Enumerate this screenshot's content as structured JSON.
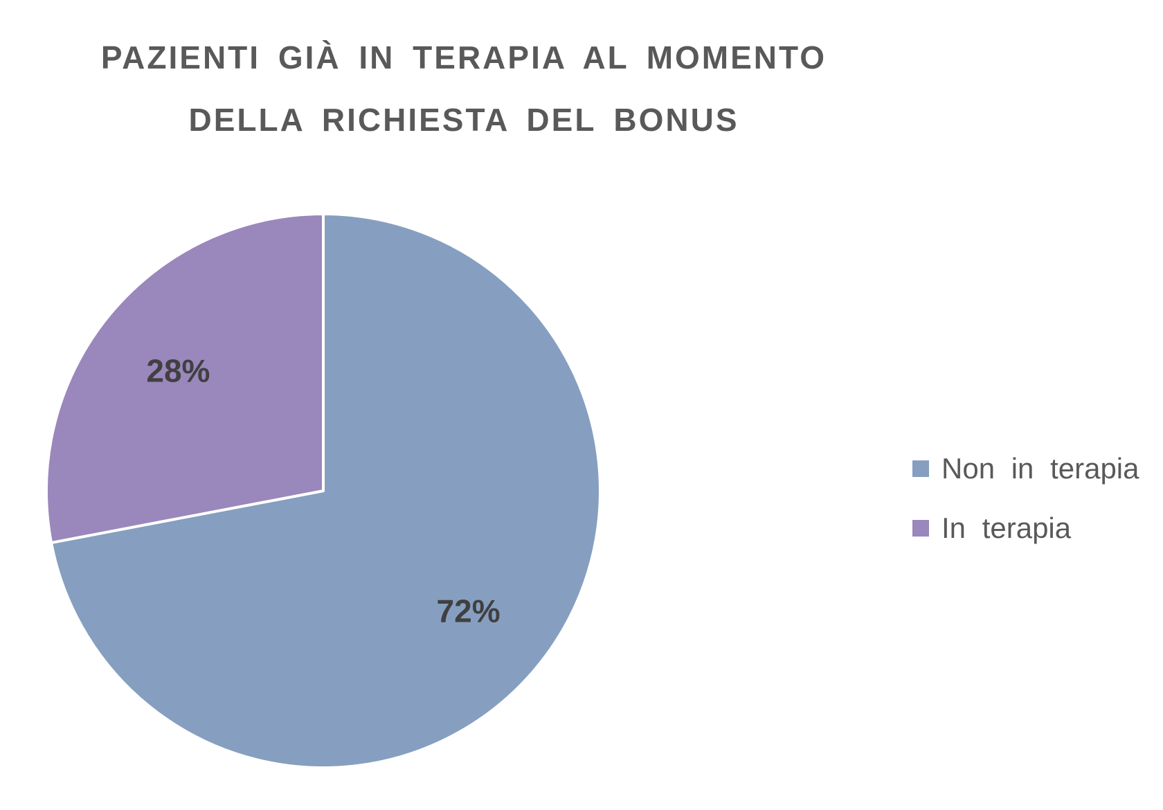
{
  "chart_data": {
    "type": "pie",
    "title": [
      "PAZIENTI GIÀ IN TERAPIA AL MOMENTO",
      "DELLA RICHIESTA DEL BONUS"
    ],
    "slices": [
      {
        "name": "Non in terapia",
        "value": 72,
        "label": "72%",
        "color": "#869FC0"
      },
      {
        "name": "In terapia",
        "value": 28,
        "label": "28%",
        "color": "#9A87BC"
      }
    ],
    "legend_position": "right",
    "start_angle": "12 o'clock",
    "direction": "clockwise"
  }
}
